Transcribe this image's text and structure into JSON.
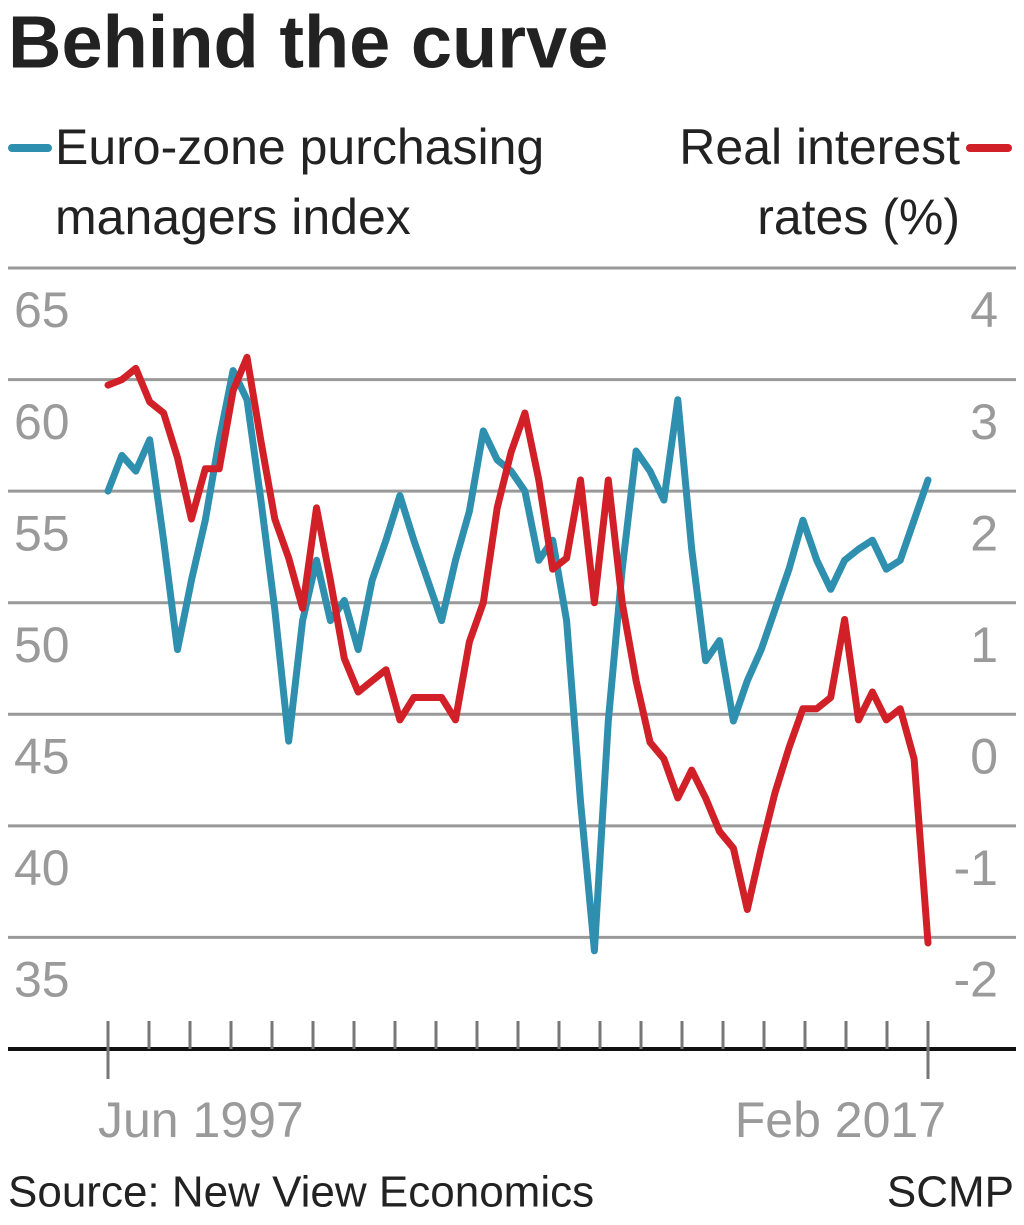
{
  "chart_data": {
    "type": "line",
    "title": "Behind the curve",
    "source": "Source: New View Economics",
    "credit": "SCMP",
    "categories": [
      "Jun 1997",
      null,
      null,
      null,
      null,
      null,
      null,
      null,
      null,
      null,
      null,
      null,
      null,
      null,
      null,
      null,
      null,
      null,
      null,
      null,
      null,
      null,
      null,
      null,
      null,
      null,
      null,
      null,
      null,
      null,
      null,
      null,
      null,
      null,
      null,
      null,
      null,
      null,
      null,
      null,
      null,
      null,
      null,
      null,
      null,
      null,
      null,
      null,
      null,
      null,
      null,
      null,
      null,
      null,
      null,
      null,
      null,
      null,
      null,
      "Feb 2017"
    ],
    "series": [
      {
        "name": "Euro-zone purchasing managers index",
        "color": "#2e8fae",
        "values": [
          55,
          56.6,
          55.9,
          57.3,
          52.8,
          47.9,
          51,
          53.7,
          57.3,
          60.4,
          59.1,
          54.6,
          49.7,
          43.8,
          49.2,
          51.9,
          49.2,
          50.1,
          47.9,
          51,
          52.8,
          54.8,
          52.8,
          51,
          49.2,
          51.9,
          54.1,
          57.7,
          56.4,
          55.9,
          55,
          51.9,
          52.8,
          49.2,
          41.1,
          34.4,
          44.7,
          51.5,
          56.8,
          55.9,
          54.6,
          59.1,
          52.4,
          47.4,
          48.3,
          44.7,
          46.5,
          47.9,
          49.7,
          51.5,
          53.7,
          51.9,
          50.6,
          51.9,
          52.4,
          52.8,
          51.5,
          51.9,
          53.7,
          55.5
        ]
      },
      {
        "name": "Real interest rates (%)",
        "color": "#d12028",
        "axis": "y2",
        "values": [
          2.95,
          3.0,
          3.1,
          2.8,
          2.7,
          2.3,
          1.75,
          2.2,
          2.2,
          2.9,
          3.2,
          2.45,
          1.75,
          1.4,
          0.95,
          1.85,
          1.2,
          0.5,
          0.2,
          0.3,
          0.4,
          -0.05,
          0.15,
          0.15,
          0.15,
          -0.05,
          0.65,
          1.0,
          1.85,
          2.35,
          2.7,
          2.1,
          1.3,
          1.4,
          2.1,
          1.0,
          2.1,
          1.0,
          0.3,
          -0.25,
          -0.4,
          -0.75,
          -0.5,
          -0.75,
          -1.05,
          -1.2,
          -1.75,
          -1.2,
          -0.7,
          -0.3,
          0.05,
          0.05,
          0.15,
          0.85,
          -0.05,
          0.2,
          -0.05,
          0.05,
          -0.4,
          -2.05
        ]
      }
    ],
    "ylim": [
      30,
      65
    ],
    "yticks": [
      35,
      40,
      45,
      50,
      55,
      60,
      65
    ],
    "y2lim": [
      -3,
      4
    ],
    "y2ticks": [
      -2,
      -1,
      0,
      1,
      2,
      3,
      4
    ],
    "grid": true
  }
}
